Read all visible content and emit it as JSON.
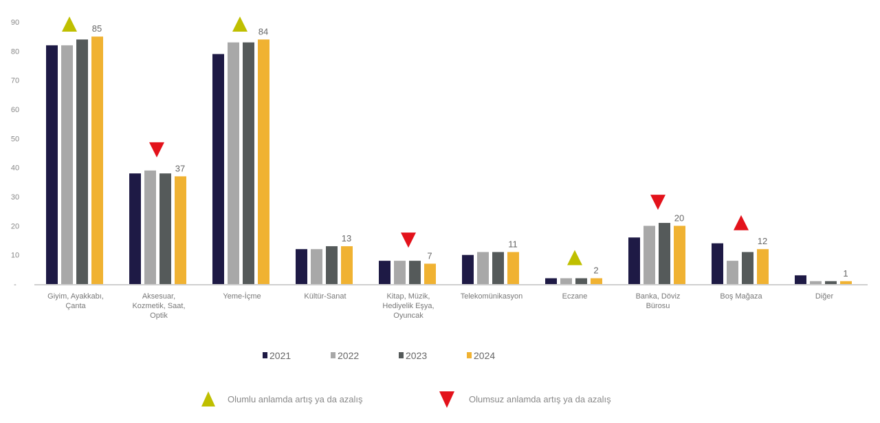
{
  "chart_data": {
    "type": "bar",
    "title": "",
    "xlabel": "",
    "ylabel": "",
    "ylim": [
      0,
      90
    ],
    "yticks": [
      "-",
      "10",
      "20",
      "30",
      "40",
      "50",
      "60",
      "70",
      "80",
      "90"
    ],
    "grid": false,
    "legend_position": "bottom",
    "categories": [
      "Giyim, Ayakkabı,\nÇanta",
      "Aksesuar,\nKozmetik, Saat,\nOptik",
      "Yeme-İçme",
      "Kültür-Sanat",
      "Kitap, Müzik,\nHediyelik Eşya,\nOyuncak",
      "Telekomünikasyon",
      "Eczane",
      "Banka, Döviz\nBürosu",
      "Boş Mağaza",
      "Diğer"
    ],
    "series": [
      {
        "name": "2021",
        "color": "#1e1a45",
        "values": [
          82,
          38,
          79,
          12,
          8,
          10,
          2,
          16,
          14,
          3
        ]
      },
      {
        "name": "2022",
        "color": "#a8a8a8",
        "values": [
          82,
          39,
          83,
          12,
          8,
          11,
          2,
          20,
          8,
          1
        ]
      },
      {
        "name": "2023",
        "color": "#555a5a",
        "values": [
          84,
          38,
          83,
          13,
          8,
          11,
          2,
          21,
          11,
          1
        ]
      },
      {
        "name": "2024",
        "color": "#f0b232",
        "values": [
          85,
          37,
          84,
          13,
          7,
          11,
          2,
          20,
          12,
          1
        ]
      }
    ],
    "data_labels": [
      "85",
      "37",
      "84",
      "13",
      "7",
      "11",
      "2",
      "20",
      "12",
      "1"
    ],
    "markers": [
      "up-positive",
      "down-negative",
      "up-positive",
      null,
      "down-negative",
      null,
      "up-positive",
      "down-negative",
      "up-negative",
      null
    ],
    "marker_colors": {
      "positive": "#bfbf00",
      "negative": "#e3121b"
    },
    "marker_legend": {
      "positive": "Olumlu anlamda artış ya da azalış",
      "negative": "Olumsuz anlamda artış ya da azalış"
    }
  }
}
